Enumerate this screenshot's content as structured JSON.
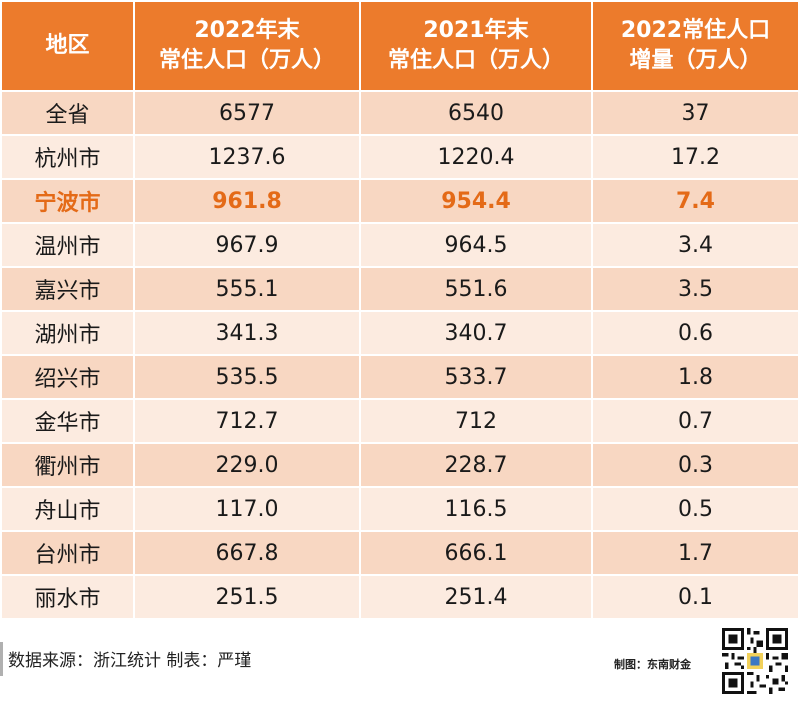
{
  "table": {
    "headers": [
      {
        "lines": [
          "地区"
        ]
      },
      {
        "lines": [
          "2022年末",
          "常住人口（万人）"
        ]
      },
      {
        "lines": [
          "2021年末",
          "常住人口（万人）"
        ]
      },
      {
        "lines": [
          "2022常住人口",
          "增量（万人）"
        ]
      }
    ],
    "rows": [
      {
        "region": "全省",
        "pop2022": "6577",
        "pop2021": "6540",
        "delta": "37"
      },
      {
        "region": "杭州市",
        "pop2022": "1237.6",
        "pop2021": "1220.4",
        "delta": "17.2"
      },
      {
        "region": "宁波市",
        "pop2022": "961.8",
        "pop2021": "954.4",
        "delta": "7.4"
      },
      {
        "region": "温州市",
        "pop2022": "967.9",
        "pop2021": "964.5",
        "delta": "3.4"
      },
      {
        "region": "嘉兴市",
        "pop2022": "555.1",
        "pop2021": "551.6",
        "delta": "3.5"
      },
      {
        "region": "湖州市",
        "pop2022": "341.3",
        "pop2021": "340.7",
        "delta": "0.6"
      },
      {
        "region": "绍兴市",
        "pop2022": "535.5",
        "pop2021": "533.7",
        "delta": "1.8"
      },
      {
        "region": "金华市",
        "pop2022": "712.7",
        "pop2021": "712",
        "delta": "0.7"
      },
      {
        "region": "衢州市",
        "pop2022": "229.0",
        "pop2021": "228.7",
        "delta": "0.3"
      },
      {
        "region": "舟山市",
        "pop2022": "117.0",
        "pop2021": "116.5",
        "delta": "0.5"
      },
      {
        "region": "台州市",
        "pop2022": "667.8",
        "pop2021": "666.1",
        "delta": "1.7"
      },
      {
        "region": "丽水市",
        "pop2022": "251.5",
        "pop2021": "251.4",
        "delta": "0.1"
      }
    ],
    "highlight_region": "宁波市"
  },
  "footer": {
    "source": "数据来源：浙江统计 制表：严瑾",
    "maker": "制图：东南财金",
    "qr_icon": "qr-code-icon"
  },
  "colors": {
    "header_bg": "#ec7b2c",
    "row_odd": "#f8d7c2",
    "row_even": "#fcebe0",
    "highlight_text": "#e46a17"
  }
}
